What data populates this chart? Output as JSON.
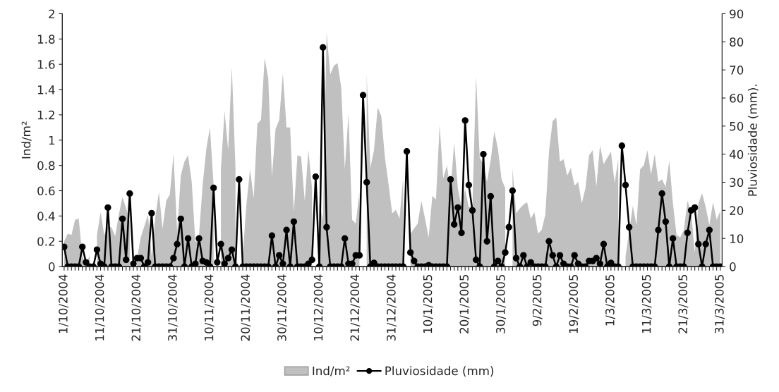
{
  "chart_data": {
    "type": "area",
    "ylabel": "Ind/m²",
    "y2label": "Pluviosidade (mm).",
    "categories": [
      "1/10/2004",
      null,
      null,
      null,
      null,
      null,
      null,
      null,
      null,
      null,
      "11/10/2004",
      null,
      null,
      null,
      null,
      null,
      null,
      null,
      null,
      null,
      "21/10/2004",
      null,
      null,
      null,
      null,
      null,
      null,
      null,
      null,
      null,
      "31/10/2004",
      null,
      null,
      null,
      null,
      null,
      null,
      null,
      null,
      null,
      "10/11/2004",
      null,
      null,
      null,
      null,
      null,
      null,
      null,
      null,
      null,
      "20/11/2004",
      null,
      null,
      null,
      null,
      null,
      null,
      null,
      null,
      null,
      "30/11/2004",
      null,
      null,
      null,
      null,
      null,
      null,
      null,
      null,
      null,
      "10/12/2004",
      null,
      null,
      null,
      null,
      null,
      null,
      null,
      null,
      null,
      "21/12/2004",
      null,
      null,
      null,
      null,
      null,
      null,
      null,
      null,
      null,
      "31/12/2004",
      null,
      null,
      null,
      null,
      null,
      null,
      null,
      null,
      null,
      "10/1/2005",
      null,
      null,
      null,
      null,
      null,
      null,
      null,
      null,
      null,
      "20/1/2005",
      null,
      null,
      null,
      null,
      null,
      null,
      null,
      null,
      null,
      "30/1/2005",
      null,
      null,
      null,
      null,
      null,
      null,
      null,
      null,
      null,
      "9/2/2005",
      null,
      null,
      null,
      null,
      null,
      null,
      null,
      null,
      null,
      "19/2/2005",
      null,
      null,
      null,
      null,
      null,
      null,
      null,
      null,
      null,
      "1/3/2005",
      null,
      null,
      null,
      null,
      null,
      null,
      null,
      null,
      null,
      "11/3/2005",
      null,
      null,
      null,
      null,
      null,
      null,
      null,
      null,
      null,
      "21/3/2005",
      null,
      null,
      null,
      null,
      null,
      null,
      null,
      null,
      null,
      "31/3/2005"
    ],
    "series": [
      {
        "name": "Ind/m²",
        "color": "#c0c0c0",
        "values": [
          0.2,
          0.26,
          0.25,
          0.37,
          0.38,
          0.08,
          0.02,
          0.09,
          null,
          0.25,
          0.43,
          0.25,
          0.32,
          0.31,
          0.24,
          0.41,
          0.55,
          0.46,
          0.36,
          null,
          0.06,
          0.23,
          0.32,
          0.41,
          0.08,
          0.39,
          0.59,
          0.3,
          0.52,
          0.57,
          0.89,
          0.27,
          0.72,
          0.83,
          0.88,
          0.67,
          0.19,
          0.25,
          0.65,
          0.93,
          1.1,
          0.64,
          null,
          0.77,
          1.23,
          0.92,
          1.58,
          0.78,
          null,
          0.09,
          0.49,
          0.77,
          0.54,
          1.13,
          1.16,
          1.65,
          1.49,
          0.71,
          1.09,
          1.16,
          1.53,
          1.1,
          1.1,
          0.43,
          0.88,
          0.87,
          0.52,
          0.92,
          0.62,
          null,
          0.5,
          0.37,
          1.85,
          1.52,
          1.59,
          1.61,
          1.42,
          0.77,
          1.21,
          0.37,
          0.34,
          0.59,
          null,
          1.52,
          0.78,
          0.92,
          1.26,
          1.19,
          0.86,
          0.65,
          0.42,
          0.45,
          0.38,
          0.7,
          null,
          0.26,
          0.3,
          0.34,
          0.52,
          0.38,
          0.23,
          0.56,
          0.53,
          1.12,
          0.7,
          0.8,
          0.6,
          0.98,
          0.62,
          0.47,
          0.61,
          0.47,
          0.47,
          1.51,
          0.86,
          0.81,
          0.67,
          0.84,
          1.07,
          0.93,
          0.69,
          0.62,
          null,
          0.78,
          0.42,
          0.46,
          0.49,
          0.51,
          0.38,
          0.43,
          0.26,
          0.29,
          0.41,
          0.91,
          1.15,
          1.18,
          0.83,
          0.85,
          0.72,
          0.78,
          0.64,
          0.67,
          0.5,
          0.62,
          0.88,
          0.92,
          0.63,
          0.96,
          0.81,
          0.86,
          0.91,
          0.66,
          0.85,
          null,
          0.08,
          0.28,
          0.48,
          0.33,
          0.77,
          0.8,
          0.92,
          0.73,
          0.89,
          0.67,
          0.69,
          0.63,
          0.84,
          0.5,
          0.25,
          0.23,
          0.29,
          0.52,
          0.43,
          0.11,
          0.5,
          0.58,
          0.47,
          0.33,
          0.51,
          0.37,
          0.44
        ]
      },
      {
        "name": "Pluviosidade (mm)",
        "type": "line",
        "axis": "y2",
        "color": "#000000",
        "marker": "circle",
        "values": [
          7,
          0,
          0,
          0,
          0,
          7,
          1.5,
          0,
          0,
          6,
          1,
          0,
          21,
          0,
          0,
          0,
          17,
          2.4,
          26,
          1,
          3,
          3,
          0,
          1.5,
          19,
          0,
          0,
          0,
          0,
          0,
          3,
          8,
          17,
          0,
          10,
          0,
          1,
          10,
          2,
          1.5,
          0,
          28,
          1.5,
          8,
          1,
          3,
          6,
          0,
          31,
          0,
          0,
          0,
          0,
          0,
          0,
          0,
          0,
          11,
          0,
          4,
          1,
          13,
          0,
          16,
          0,
          0,
          0,
          1,
          2.4,
          32,
          0,
          78,
          14,
          0,
          0,
          0,
          0,
          10,
          1,
          1,
          4,
          4,
          61,
          30,
          0,
          1.3,
          0,
          0,
          0,
          0,
          0,
          0,
          0,
          0,
          41,
          5,
          2,
          0,
          0,
          0,
          0.5,
          0,
          0,
          0,
          0,
          0,
          31,
          15,
          21,
          12,
          52,
          29,
          20,
          2.4,
          0,
          40,
          9,
          25,
          0,
          2,
          0,
          5,
          14,
          27,
          3,
          0,
          4,
          0,
          1.5,
          0,
          0,
          0,
          0,
          9,
          4,
          0,
          4,
          1,
          0,
          0,
          4,
          1,
          0,
          0,
          2,
          2,
          3,
          1,
          8,
          0,
          1.3,
          0,
          0,
          43,
          29,
          14,
          0,
          0,
          0,
          0,
          0,
          0,
          0,
          13,
          26,
          16,
          0,
          10,
          0,
          0,
          0,
          12,
          20,
          21,
          8,
          0,
          8,
          13,
          0,
          0,
          0
        ]
      }
    ],
    "ylim": [
      0,
      2
    ],
    "yticks": [
      0,
      0.2,
      0.4,
      0.6,
      0.8,
      1,
      1.2,
      1.4,
      1.6,
      1.8,
      2
    ],
    "y2lim": [
      0,
      90
    ],
    "y2ticks": [
      0,
      10,
      20,
      30,
      40,
      50,
      60,
      70,
      80,
      90
    ],
    "grid": false,
    "legend": "bottom"
  }
}
